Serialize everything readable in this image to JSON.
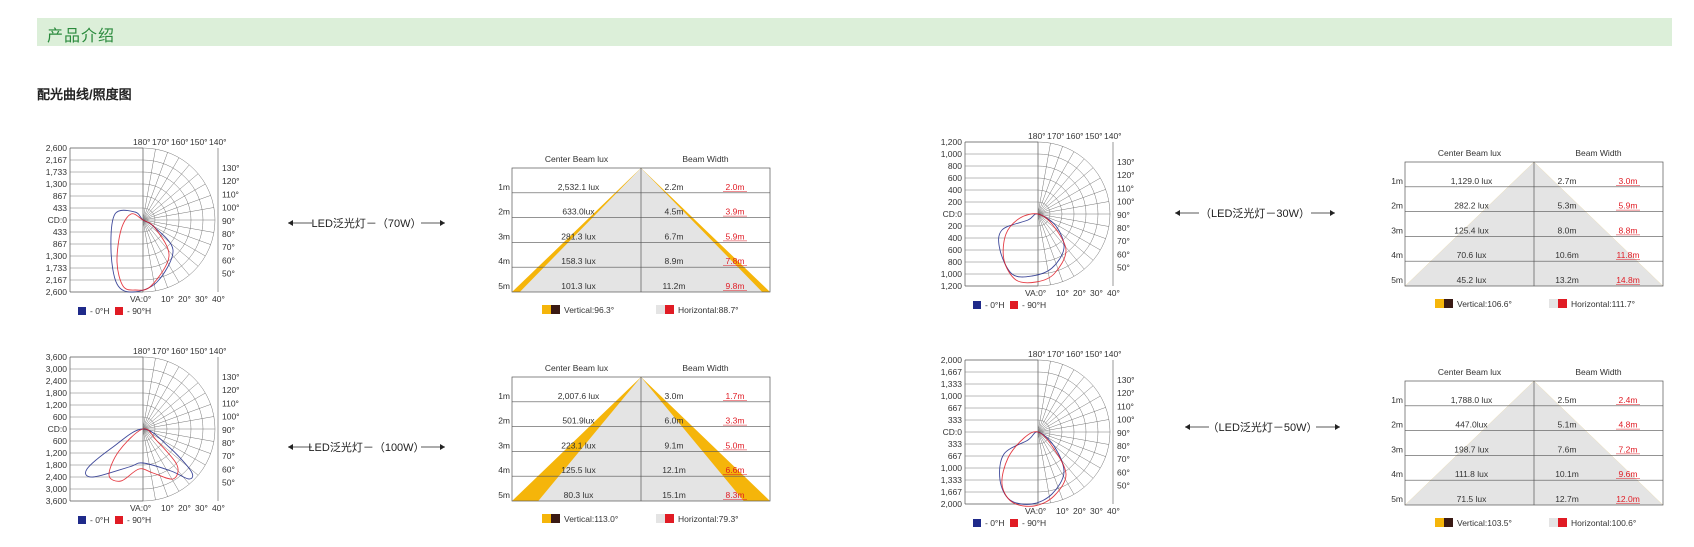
{
  "header": {
    "title": "产品介绍"
  },
  "section": {
    "title": "配光曲线/照度图"
  },
  "polar_common": {
    "top_angles": [
      "180°",
      "170°",
      "160°",
      "150°",
      "140°"
    ],
    "right_angles": [
      "130°",
      "120°",
      "110°",
      "100°",
      "90°",
      "80°",
      "70°",
      "60°",
      "50°"
    ],
    "bottom_prefix": "VA:0°",
    "bottom_angles": [
      "10°",
      "20°",
      "30°",
      "40°"
    ],
    "legend": [
      {
        "label": "- 0°H",
        "color": "#1f2a8a"
      },
      {
        "label": "- 90°H",
        "color": "#e01b24"
      }
    ]
  },
  "illum_common": {
    "col_headers": [
      "Center Beam lux",
      "Beam Width"
    ],
    "distances": [
      "1m",
      "2m",
      "3m",
      "4m",
      "5m"
    ],
    "colors": {
      "vertical": "#f5b50a",
      "horizontal": "#e4e4e4",
      "red": "#e01b24",
      "dark": "#3a1a14"
    }
  },
  "products": [
    {
      "label": "LED泛光灯－（70W）",
      "polar": {
        "scale": [
          "2,600",
          "2,167",
          "1,733",
          "1,300",
          "867",
          "433",
          "CD:0",
          "433",
          "867",
          "1,300",
          "1,733",
          "2,167",
          "2,600"
        ]
      },
      "illum": {
        "lux": [
          "2,532.1 lux",
          "633.0lux",
          "281.3 lux",
          "158.3 lux",
          "101.3 lux"
        ],
        "vwidth": [
          "2.2m",
          "4.5m",
          "6.7m",
          "8.9m",
          "11.2m"
        ],
        "hwidth": [
          "2.0m",
          "3.9m",
          "5.9m",
          "7.8m",
          "9.8m"
        ],
        "vertical": "Vertical:96.3°",
        "horizontal": "Horizontal:88.7°",
        "vertical_deg": 96.3,
        "horizontal_deg": 88.7
      }
    },
    {
      "label": "LED泛光灯－（100W）",
      "polar": {
        "scale": [
          "3,600",
          "3,000",
          "2,400",
          "1,800",
          "1,200",
          "600",
          "CD:0",
          "600",
          "1,200",
          "1,800",
          "2,400",
          "3,000",
          "3,600"
        ]
      },
      "illum": {
        "lux": [
          "2,007.6 lux",
          "501.9lux",
          "223.1 lux",
          "125.5 lux",
          "80.3 lux"
        ],
        "vwidth": [
          "3.0m",
          "6.0m",
          "9.1m",
          "12.1m",
          "15.1m"
        ],
        "hwidth": [
          "1.7m",
          "3.3m",
          "5.0m",
          "6.6m",
          "8.3m"
        ],
        "vertical": "Vertical:113.0°",
        "horizontal": "Horizontal:79.3°",
        "vertical_deg": 113.0,
        "horizontal_deg": 79.3
      }
    },
    {
      "label": "（LED泛光灯－30W）",
      "polar": {
        "scale": [
          "1,200",
          "1,000",
          "800",
          "600",
          "400",
          "200",
          "CD:0",
          "200",
          "400",
          "600",
          "800",
          "1,000",
          "1,200"
        ]
      },
      "illum": {
        "lux": [
          "1,129.0 lux",
          "282.2 lux",
          "125.4 lux",
          "70.6 lux",
          "45.2 lux"
        ],
        "vwidth": [
          "2.7m",
          "5.3m",
          "8.0m",
          "10.6m",
          "13.2m"
        ],
        "hwidth": [
          "3.0m",
          "5.9m",
          "8.8m",
          "11.8m",
          "14.8m"
        ],
        "vertical": "Vertical:106.6°",
        "horizontal": "Horizontal:111.7°",
        "vertical_deg": 106.6,
        "horizontal_deg": 111.7
      }
    },
    {
      "label": "（LED泛光灯－50W）",
      "polar": {
        "scale": [
          "2,000",
          "1,667",
          "1,333",
          "1,000",
          "667",
          "333",
          "CD:0",
          "333",
          "667",
          "1,000",
          "1,333",
          "1,667",
          "2,000"
        ]
      },
      "illum": {
        "lux": [
          "1,788.0 lux",
          "447.0lux",
          "198.7 lux",
          "111.8 lux",
          "71.5 lux"
        ],
        "vwidth": [
          "2.5m",
          "5.1m",
          "7.6m",
          "10.1m",
          "12.7m"
        ],
        "hwidth": [
          "2.4m",
          "4.8m",
          "7.2m",
          "9.6m",
          "12.0m"
        ],
        "vertical": "Vertical:103.5°",
        "horizontal": "Horizontal:100.6°",
        "vertical_deg": 103.5,
        "horizontal_deg": 100.6
      }
    }
  ]
}
